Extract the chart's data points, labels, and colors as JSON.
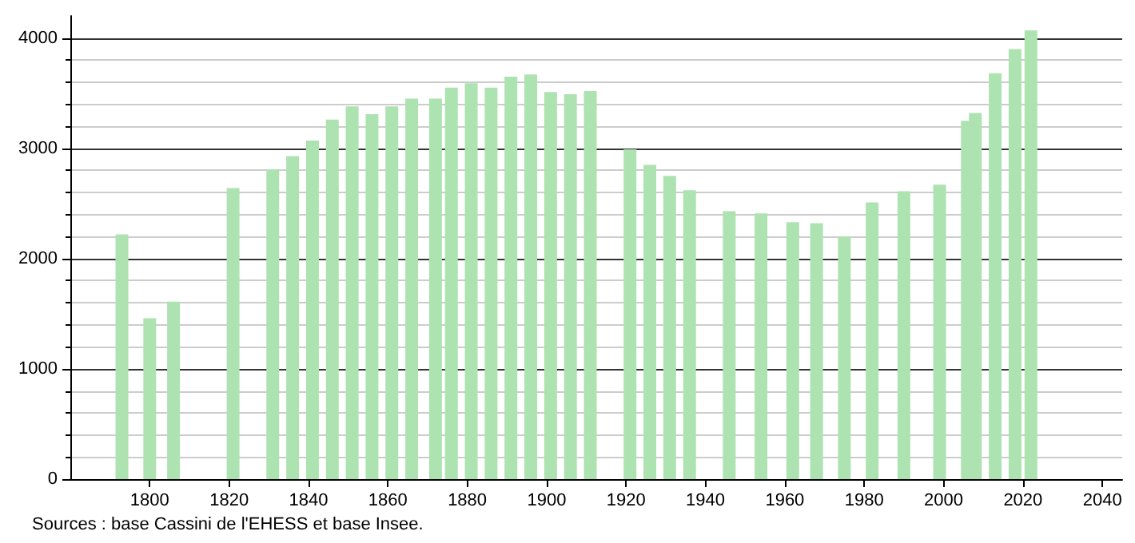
{
  "chart_data": {
    "type": "bar",
    "x": [
      1793,
      1800,
      1806,
      1821,
      1831,
      1836,
      1841,
      1846,
      1851,
      1856,
      1861,
      1866,
      1872,
      1876,
      1881,
      1886,
      1891,
      1896,
      1901,
      1906,
      1911,
      1921,
      1926,
      1931,
      1936,
      1946,
      1954,
      1962,
      1968,
      1975,
      1982,
      1990,
      1999,
      2006,
      2008,
      2013,
      2018,
      2022
    ],
    "values": [
      2220,
      1460,
      1610,
      2640,
      2810,
      2930,
      3070,
      3260,
      3380,
      3310,
      3380,
      3450,
      3450,
      3550,
      3590,
      3550,
      3650,
      3670,
      3510,
      3490,
      3520,
      2990,
      2850,
      2750,
      2620,
      2430,
      2410,
      2330,
      2320,
      2200,
      2510,
      2610,
      2670,
      3250,
      3320,
      3680,
      3900,
      4070
    ],
    "color": "#ade3b0",
    "xlim": [
      1780,
      2045
    ],
    "xticks": [
      1800,
      1820,
      1840,
      1860,
      1880,
      1900,
      1920,
      1940,
      1960,
      1980,
      2000,
      2020,
      2040
    ],
    "ylim": [
      0,
      4200
    ],
    "yticks": [
      0,
      1000,
      2000,
      3000,
      4000
    ],
    "grid": "y",
    "annotations": [
      "Sources : base Cassini de l'EHESS et base Insee."
    ]
  }
}
